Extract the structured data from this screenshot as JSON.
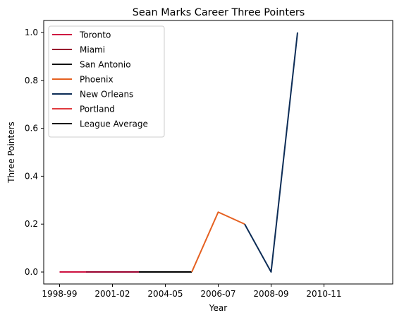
{
  "chart_data": {
    "type": "line",
    "title": "Sean Marks Career Three Pointers",
    "xlabel": "Year",
    "ylabel": "Three Pointers",
    "xlim": [
      -0.6,
      12.6
    ],
    "ylim": [
      -0.05,
      1.05
    ],
    "x_ticks": [
      {
        "pos": 0,
        "label": "1998-99"
      },
      {
        "pos": 2,
        "label": "2001-02"
      },
      {
        "pos": 4,
        "label": "2004-05"
      },
      {
        "pos": 6,
        "label": "2006-07"
      },
      {
        "pos": 8,
        "label": "2008-09"
      },
      {
        "pos": 10,
        "label": "2010-11"
      }
    ],
    "y_ticks": [
      0.0,
      0.2,
      0.4,
      0.6,
      0.8,
      1.0
    ],
    "y_tick_labels": [
      "0.0",
      "0.2",
      "0.4",
      "0.6",
      "0.8",
      "1.0"
    ],
    "legend_position": "upper-left",
    "grid": false,
    "series": [
      {
        "name": "Toronto",
        "color": "#ce1141",
        "points": [
          [
            0,
            0.0
          ],
          [
            1,
            0.0
          ]
        ]
      },
      {
        "name": "Miami",
        "color": "#98002e",
        "points": [
          [
            1,
            0.0
          ],
          [
            2,
            0.0
          ],
          [
            3,
            0.0
          ]
        ]
      },
      {
        "name": "San Antonio",
        "color": "#000000",
        "points": [
          [
            3,
            0.0
          ],
          [
            4,
            0.0
          ],
          [
            5,
            0.0
          ]
        ]
      },
      {
        "name": "Phoenix",
        "color": "#e56020",
        "points": [
          [
            5,
            0.0
          ],
          [
            6,
            0.25
          ],
          [
            7,
            0.2
          ]
        ]
      },
      {
        "name": "New Orleans",
        "color": "#0c2c56",
        "points": [
          [
            7,
            0.2
          ],
          [
            8,
            0.0
          ],
          [
            9,
            1.0
          ]
        ]
      },
      {
        "name": "Portland",
        "color": "#e03a3e",
        "points": []
      },
      {
        "name": "League Average",
        "color": "#000000",
        "points": []
      }
    ]
  }
}
